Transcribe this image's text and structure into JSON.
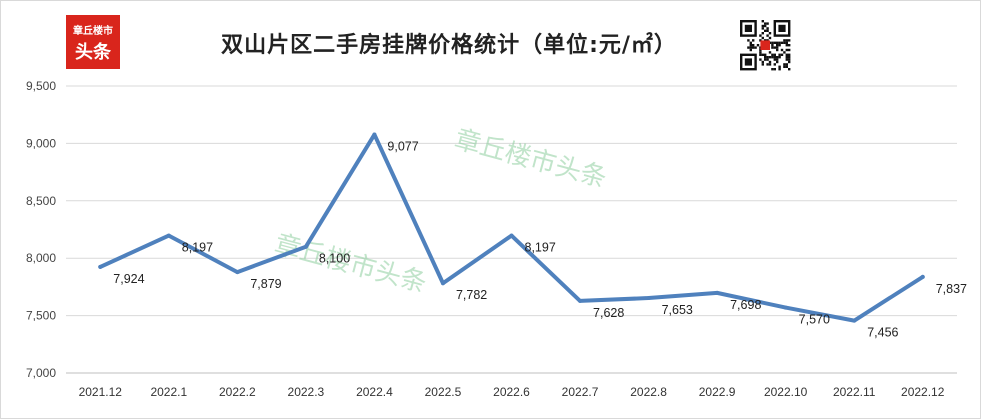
{
  "chart_data": {
    "type": "line",
    "title": "双山片区二手房挂牌价格统计（单位:元/㎡）",
    "categories": [
      "2021.12",
      "2022.1",
      "2022.2",
      "2022.3",
      "2022.4",
      "2022.5",
      "2022.6",
      "2022.7",
      "2022.8",
      "2022.9",
      "2022.10",
      "2022.11",
      "2022.12"
    ],
    "series": [
      {
        "values": [
          7924,
          8197,
          7879,
          8100,
          9077,
          7782,
          8197,
          7628,
          7653,
          7698,
          7570,
          7456,
          7837
        ]
      }
    ],
    "data_labels": [
      "7,924",
      "8,197",
      "7,879",
      "8,100",
      "9,077",
      "7,782",
      "8,197",
      "7,628",
      "7,653",
      "7,698",
      "7,570",
      "7,456",
      "7,837"
    ],
    "ylim": [
      7000,
      9500
    ],
    "yticks": [
      7000,
      7500,
      8000,
      8500,
      9000,
      9500
    ],
    "ytick_labels": [
      "7,000",
      "7,500",
      "8,000",
      "8,500",
      "9,000",
      "9,500"
    ],
    "xlabel": "",
    "ylabel": "",
    "grid": true,
    "legend": "none",
    "line_color": "#4f81bd"
  },
  "logo": {
    "line1": "章丘楼市",
    "line2": "头条",
    "color": "#d9251c"
  },
  "watermark": "章丘楼市头条"
}
